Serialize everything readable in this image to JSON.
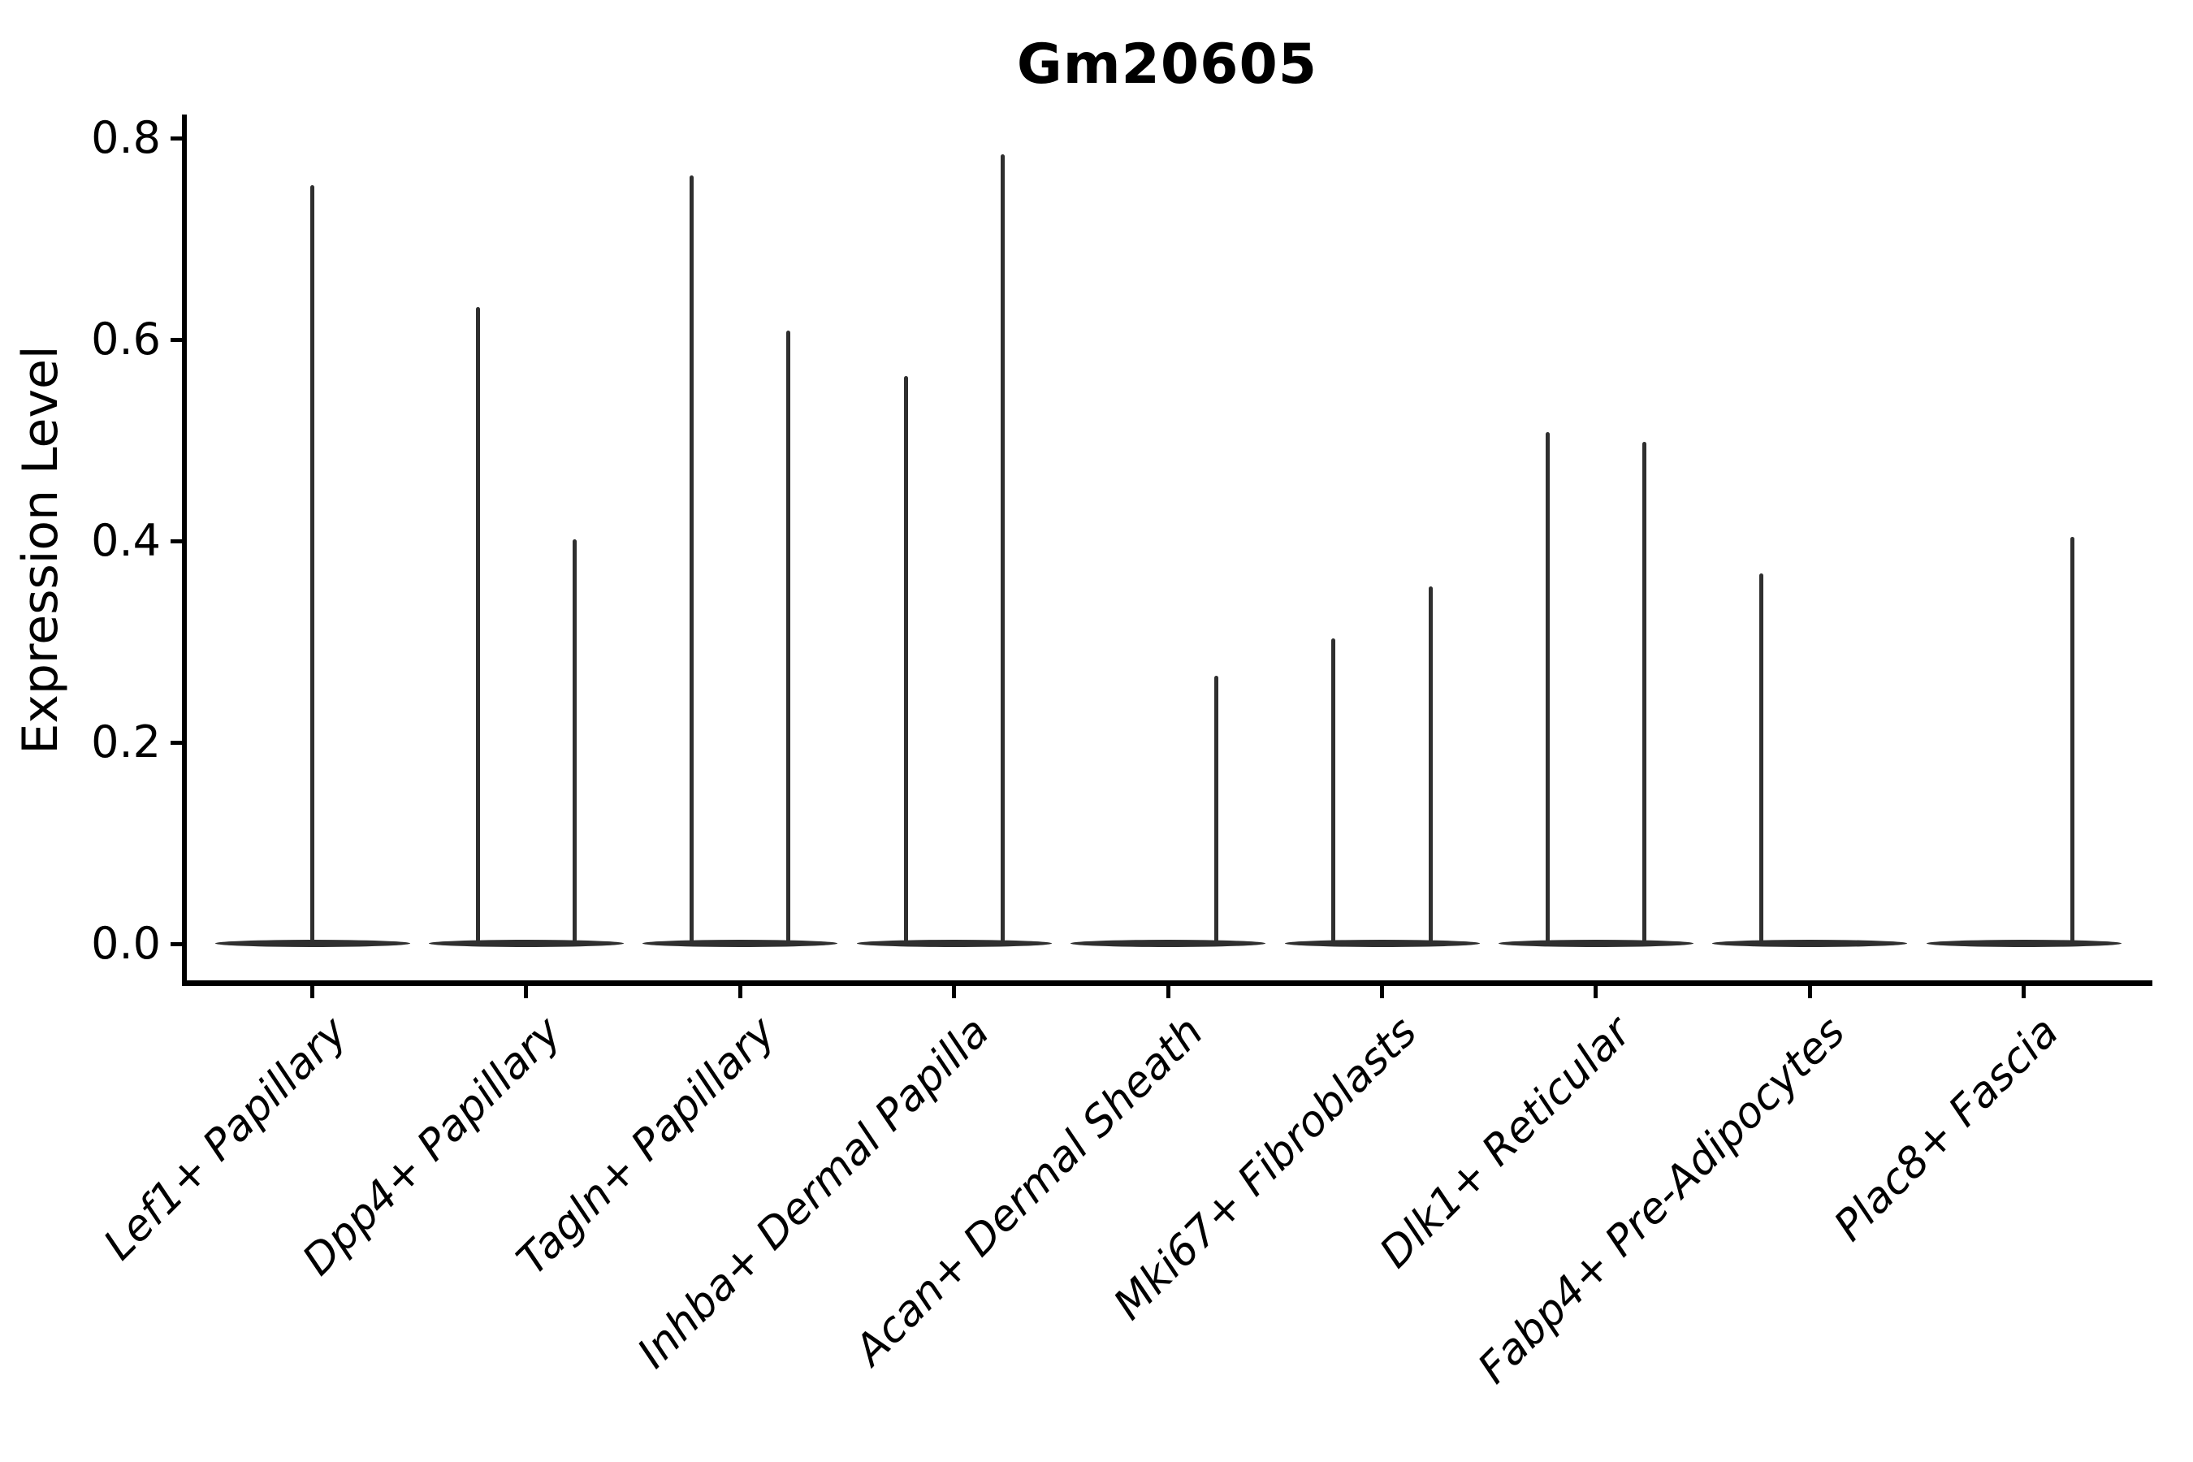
{
  "figure": {
    "title": "Gm20605",
    "ylabel": "Expression Level"
  },
  "colors": {
    "background": "#ffffff",
    "ink": "#000000",
    "violin": "#2f2f2f"
  },
  "chart_data": {
    "type": "violin",
    "title": "Gm20605",
    "xlabel": "",
    "ylabel": "Expression Level",
    "ylim": [
      0,
      0.82
    ],
    "yticks": [
      "0.0",
      "0.2",
      "0.4",
      "0.6",
      "0.8"
    ],
    "ytick_values": [
      0.0,
      0.2,
      0.4,
      0.6,
      0.8
    ],
    "grid": false,
    "legend": "none",
    "x_tick_rotation": 45,
    "x_tick_style": "italic",
    "categories": [
      "Lef1+ Papillary",
      "Dpp4+ Papillary",
      "Tagln+ Papillary",
      "Inhba+ Dermal Papilla",
      "Acan+ Dermal Sheath",
      "Mki67+ Fibroblasts",
      "Dlk1+ Reticular",
      "Fabp4+ Pre-Adipocytes",
      "Plac8+ Fascia"
    ],
    "violins": [
      {
        "category": "Lef1+ Papillary",
        "groups": [
          {
            "offset": 0,
            "max_expression": 0.753
          }
        ]
      },
      {
        "category": "Dpp4+ Papillary",
        "groups": [
          {
            "offset": -0.226,
            "max_expression": 0.632
          },
          {
            "offset": 0.226,
            "max_expression": 0.402
          }
        ]
      },
      {
        "category": "Tagln+ Papillary",
        "groups": [
          {
            "offset": -0.226,
            "max_expression": 0.763
          },
          {
            "offset": 0.226,
            "max_expression": 0.609
          }
        ]
      },
      {
        "category": "Inhba+ Dermal Papilla",
        "groups": [
          {
            "offset": -0.226,
            "max_expression": 0.564
          },
          {
            "offset": 0.226,
            "max_expression": 0.784
          }
        ]
      },
      {
        "category": "Acan+ Dermal Sheath",
        "groups": [
          {
            "offset": 0.226,
            "max_expression": 0.266
          }
        ]
      },
      {
        "category": "Mki67+ Fibroblasts",
        "groups": [
          {
            "offset": -0.226,
            "max_expression": 0.303
          },
          {
            "offset": 0.226,
            "max_expression": 0.355
          }
        ]
      },
      {
        "category": "Dlk1+ Reticular",
        "groups": [
          {
            "offset": -0.226,
            "max_expression": 0.508
          },
          {
            "offset": 0.226,
            "max_expression": 0.498
          }
        ]
      },
      {
        "category": "Fabp4+ Pre-Adipocytes",
        "groups": [
          {
            "offset": -0.226,
            "max_expression": 0.368
          }
        ]
      },
      {
        "category": "Plac8+ Fascia",
        "groups": [
          {
            "offset": 0.226,
            "max_expression": 0.404
          }
        ]
      }
    ]
  }
}
